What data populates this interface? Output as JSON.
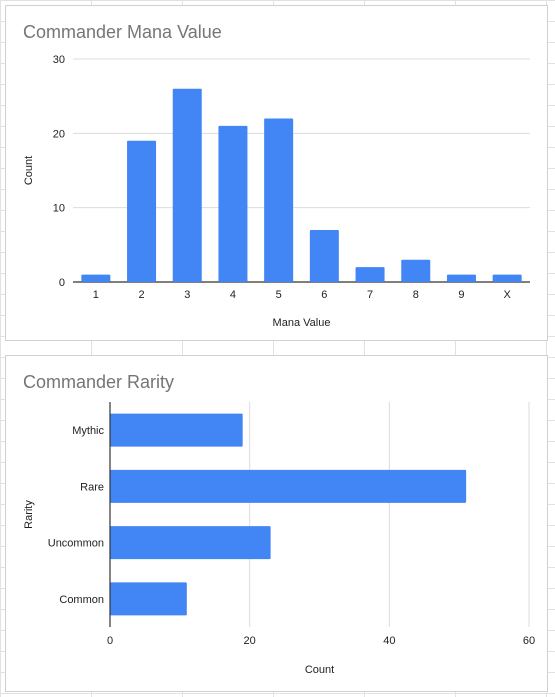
{
  "chart_data": [
    {
      "type": "bar",
      "title": "Commander Mana Value",
      "xlabel": "Mana Value",
      "ylabel": "Count",
      "categories": [
        "1",
        "2",
        "3",
        "4",
        "5",
        "6",
        "7",
        "8",
        "9",
        "X"
      ],
      "values": [
        1,
        19,
        26,
        21,
        22,
        7,
        2,
        3,
        1,
        1
      ],
      "ylim": [
        0,
        30
      ],
      "yticks": [
        "0",
        "10",
        "20",
        "30"
      ],
      "grid": true,
      "legend": "none",
      "color": "#4285f4"
    },
    {
      "type": "bar",
      "orientation": "horizontal",
      "title": "Commander Rarity",
      "xlabel": "Count",
      "ylabel": "Rarity",
      "categories": [
        "Mythic",
        "Rare",
        "Uncommon",
        "Common"
      ],
      "values": [
        19,
        51,
        23,
        11
      ],
      "xlim": [
        0,
        60
      ],
      "xticks": [
        "0",
        "20",
        "40",
        "60"
      ],
      "grid": true,
      "legend": "none",
      "color": "#4285f4"
    }
  ]
}
